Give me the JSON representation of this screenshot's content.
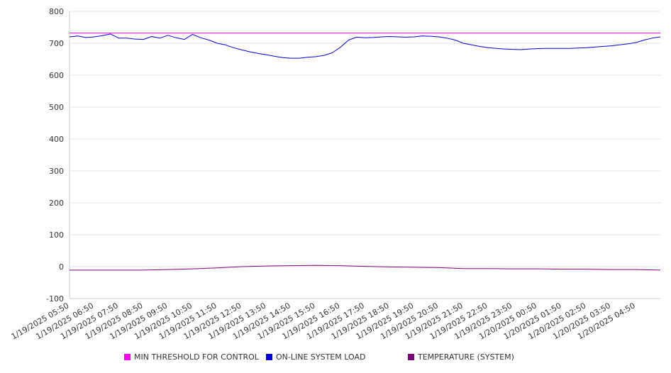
{
  "chart_data": {
    "type": "line",
    "y_ticks": [
      -100,
      0,
      100,
      200,
      300,
      400,
      500,
      600,
      700,
      800
    ],
    "ylim": [
      -100,
      800
    ],
    "x_range": [
      "2025-01-19 05:50",
      "2025-01-20 05:50"
    ],
    "categories": [
      "1/19/2025 05:50",
      "1/19/2025 06:50",
      "1/19/2025 07:50",
      "1/19/2025 08:50",
      "1/19/2025 09:50",
      "1/19/2025 10:50",
      "1/19/2025 11:50",
      "1/19/2025 12:50",
      "1/19/2025 13:50",
      "1/19/2025 14:50",
      "1/19/2025 15:50",
      "1/19/2025 16:50",
      "1/19/2025 17:50",
      "1/19/2025 18:50",
      "1/19/2025 19:50",
      "1/19/2025 20:50",
      "1/19/2025 21:50",
      "1/19/2025 22:50",
      "1/19/2025 23:50",
      "1/20/2025 00:50",
      "1/20/2025 01:50",
      "1/20/2025 02:50",
      "1/20/2025 03:50",
      "1/20/2025 04:50"
    ],
    "grid": true,
    "legend_position": "bottom",
    "series": [
      {
        "name": "MIN THRESHOLD FOR CONTROL",
        "color": "#ff00ff",
        "x": [
          "2025-01-19 05:50",
          "2025-01-20 05:50"
        ],
        "values": [
          732,
          732
        ]
      },
      {
        "name": "ON-LINE SYSTEM LOAD",
        "color": "#0000dd",
        "x": [
          "2025-01-19 05:50",
          "2025-01-19 06:10",
          "2025-01-19 06:30",
          "2025-01-19 06:50",
          "2025-01-19 07:10",
          "2025-01-19 07:30",
          "2025-01-19 07:50",
          "2025-01-19 08:10",
          "2025-01-19 08:30",
          "2025-01-19 08:50",
          "2025-01-19 09:10",
          "2025-01-19 09:30",
          "2025-01-19 09:50",
          "2025-01-19 10:10",
          "2025-01-19 10:30",
          "2025-01-19 10:50",
          "2025-01-19 11:10",
          "2025-01-19 11:30",
          "2025-01-19 11:50",
          "2025-01-19 12:10",
          "2025-01-19 12:30",
          "2025-01-19 12:50",
          "2025-01-19 13:10",
          "2025-01-19 13:30",
          "2025-01-19 13:50",
          "2025-01-19 14:10",
          "2025-01-19 14:30",
          "2025-01-19 14:50",
          "2025-01-19 15:10",
          "2025-01-19 15:30",
          "2025-01-19 15:50",
          "2025-01-19 16:10",
          "2025-01-19 16:30",
          "2025-01-19 16:50",
          "2025-01-19 17:10",
          "2025-01-19 17:30",
          "2025-01-19 17:50",
          "2025-01-19 18:10",
          "2025-01-19 18:30",
          "2025-01-19 18:50",
          "2025-01-19 19:10",
          "2025-01-19 19:30",
          "2025-01-19 19:50",
          "2025-01-19 20:10",
          "2025-01-19 20:30",
          "2025-01-19 20:50",
          "2025-01-19 21:10",
          "2025-01-19 21:30",
          "2025-01-19 21:50",
          "2025-01-19 22:10",
          "2025-01-19 22:30",
          "2025-01-19 22:50",
          "2025-01-19 23:10",
          "2025-01-19 23:30",
          "2025-01-19 23:50",
          "2025-01-20 00:10",
          "2025-01-20 00:30",
          "2025-01-20 00:50",
          "2025-01-20 01:10",
          "2025-01-20 01:30",
          "2025-01-20 01:50",
          "2025-01-20 02:10",
          "2025-01-20 02:30",
          "2025-01-20 02:50",
          "2025-01-20 03:10",
          "2025-01-20 03:30",
          "2025-01-20 03:50",
          "2025-01-20 04:10",
          "2025-01-20 04:30",
          "2025-01-20 04:50",
          "2025-01-20 05:10",
          "2025-01-20 05:30",
          "2025-01-20 05:50"
        ],
        "values": [
          720,
          723,
          718,
          720,
          724,
          729,
          716,
          716,
          713,
          712,
          721,
          716,
          725,
          717,
          712,
          728,
          717,
          710,
          700,
          695,
          686,
          679,
          673,
          668,
          664,
          659,
          655,
          653,
          653,
          656,
          658,
          662,
          670,
          687,
          710,
          719,
          717,
          718,
          720,
          721,
          720,
          719,
          720,
          723,
          722,
          720,
          716,
          710,
          700,
          695,
          690,
          686,
          684,
          682,
          681,
          680,
          682,
          683,
          684,
          684,
          684,
          684,
          685,
          686,
          688,
          690,
          692,
          695,
          698,
          702,
          710,
          716,
          720
        ]
      },
      {
        "name": "TEMPERATURE (SYSTEM)",
        "color": "#800080",
        "x": [
          "2025-01-19 05:50",
          "2025-01-19 08:50",
          "2025-01-19 09:50",
          "2025-01-19 10:50",
          "2025-01-19 11:50",
          "2025-01-19 12:50",
          "2025-01-19 13:50",
          "2025-01-19 14:50",
          "2025-01-19 15:50",
          "2025-01-19 16:50",
          "2025-01-19 17:50",
          "2025-01-19 18:50",
          "2025-01-19 19:50",
          "2025-01-19 20:50",
          "2025-01-19 21:50",
          "2025-01-19 22:50",
          "2025-01-19 23:50",
          "2025-01-20 00:50",
          "2025-01-20 01:50",
          "2025-01-20 02:50",
          "2025-01-20 03:50",
          "2025-01-20 04:50",
          "2025-01-20 05:50"
        ],
        "values": [
          -11,
          -11,
          -9,
          -7,
          -4,
          0,
          2,
          3,
          4,
          3,
          1,
          -1,
          -2,
          -3,
          -6,
          -6,
          -7,
          -7,
          -8,
          -8,
          -9,
          -9,
          -11
        ]
      }
    ]
  }
}
